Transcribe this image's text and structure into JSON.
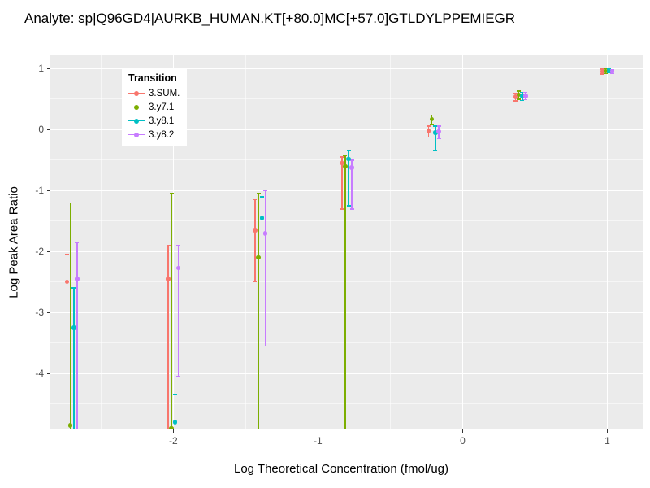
{
  "chart_data": {
    "type": "scatter",
    "title": "Analyte: sp|Q96GD4|AURKB_HUMAN.KT[+80.0]MC[+57.0]GTLDYLPPEMIEGR",
    "xlabel": "Log Theoretical Concentration (fmol/ug)",
    "ylabel": "Log Peak Area Ratio",
    "legend_title": "Transition",
    "legend_position": "top-left-inside",
    "grid": true,
    "panel_color": "#EBEBEB",
    "xlim": [
      -2.85,
      1.25
    ],
    "ylim": [
      -4.92,
      1.22
    ],
    "xticks": [
      -2,
      -1,
      0,
      1
    ],
    "yticks": [
      -4,
      -3,
      -2,
      -1,
      0,
      1
    ],
    "series": [
      {
        "name": "3.SUM.",
        "color": "#F8766D",
        "dodge": -0.035,
        "points": [
          {
            "x": -2.7,
            "y": -2.5,
            "lo": -5.2,
            "hi": -2.05
          },
          {
            "x": -2.0,
            "y": -2.45,
            "lo": -5.2,
            "hi": -1.9
          },
          {
            "x": -1.4,
            "y": -1.65,
            "lo": -2.5,
            "hi": -1.15
          },
          {
            "x": -0.8,
            "y": -0.55,
            "lo": -1.3,
            "hi": -0.45
          },
          {
            "x": -0.2,
            "y": -0.02,
            "lo": -0.12,
            "hi": 0.06
          },
          {
            "x": 0.4,
            "y": 0.54,
            "lo": 0.47,
            "hi": 0.6
          },
          {
            "x": 1.0,
            "y": 0.95,
            "lo": 0.91,
            "hi": 0.99
          }
        ]
      },
      {
        "name": "3.y7.1",
        "color": "#7CAE00",
        "dodge": -0.012,
        "points": [
          {
            "x": -2.7,
            "y": -4.85,
            "lo": -5.3,
            "hi": -1.2
          },
          {
            "x": -2.0,
            "y": -4.9,
            "lo": -5.3,
            "hi": -1.05
          },
          {
            "x": -1.4,
            "y": -2.1,
            "lo": -5.2,
            "hi": -1.05
          },
          {
            "x": -0.8,
            "y": -0.6,
            "lo": -5.2,
            "hi": -0.42
          },
          {
            "x": -0.2,
            "y": 0.17,
            "lo": 0.08,
            "hi": 0.24
          },
          {
            "x": 0.4,
            "y": 0.57,
            "lo": 0.5,
            "hi": 0.63
          },
          {
            "x": 1.0,
            "y": 0.96,
            "lo": 0.92,
            "hi": 1.0
          }
        ]
      },
      {
        "name": "3.y8.1",
        "color": "#00BFC4",
        "dodge": 0.012,
        "points": [
          {
            "x": -2.7,
            "y": -3.25,
            "lo": -5.2,
            "hi": -2.6
          },
          {
            "x": -2.0,
            "y": -4.8,
            "lo": -5.3,
            "hi": -4.35
          },
          {
            "x": -1.4,
            "y": -1.45,
            "lo": -2.55,
            "hi": -1.1
          },
          {
            "x": -0.8,
            "y": -0.48,
            "lo": -1.25,
            "hi": -0.35
          },
          {
            "x": -0.2,
            "y": -0.05,
            "lo": -0.35,
            "hi": 0.06
          },
          {
            "x": 0.4,
            "y": 0.55,
            "lo": 0.48,
            "hi": 0.61
          },
          {
            "x": 1.0,
            "y": 0.96,
            "lo": 0.93,
            "hi": 0.99
          }
        ]
      },
      {
        "name": "3.y8.2",
        "color": "#C77CFF",
        "dodge": 0.035,
        "points": [
          {
            "x": -2.7,
            "y": -2.45,
            "lo": -5.2,
            "hi": -1.85
          },
          {
            "x": -2.0,
            "y": -2.27,
            "lo": -4.05,
            "hi": -1.9
          },
          {
            "x": -1.4,
            "y": -1.7,
            "lo": -3.55,
            "hi": -1.0
          },
          {
            "x": -0.8,
            "y": -0.62,
            "lo": -1.3,
            "hi": -0.5
          },
          {
            "x": -0.2,
            "y": -0.03,
            "lo": -0.15,
            "hi": 0.06
          },
          {
            "x": 0.4,
            "y": 0.55,
            "lo": 0.49,
            "hi": 0.61
          },
          {
            "x": 1.0,
            "y": 0.95,
            "lo": 0.92,
            "hi": 0.98
          }
        ]
      }
    ]
  }
}
